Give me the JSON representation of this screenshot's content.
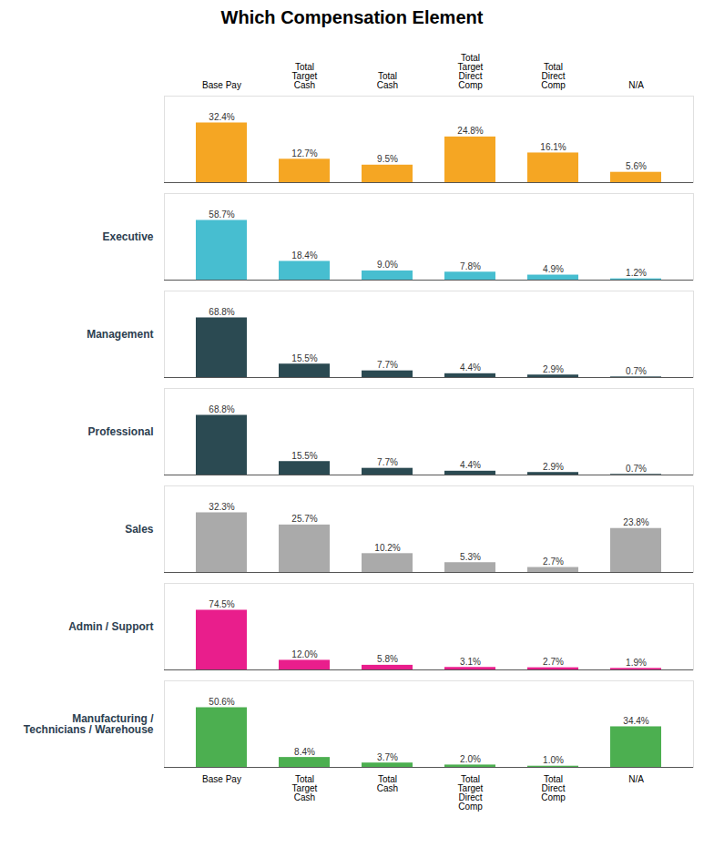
{
  "chart_data": [
    {
      "type": "bar",
      "title": "Which Compensation Element",
      "categories": [
        "Base Pay",
        "Total\nTarget\nCash",
        "Total\nCash",
        "Total\nTarget\nDirect\nComp",
        "Total\nDirect\nComp",
        "N/A"
      ],
      "values": [
        32.4,
        12.7,
        9.5,
        24.8,
        16.1,
        5.6
      ],
      "value_labels": [
        "32.4%",
        "12.7%",
        "9.5%",
        "24.8%",
        "16.1%",
        "5.6%"
      ],
      "color": "#F5A623",
      "ylim": [
        0,
        46.98
      ],
      "data_labels": true,
      "grid": false,
      "tick_labels": "x"
    },
    {
      "type": "bar",
      "title": "Executive",
      "categories": [
        "Base Pay",
        "Total\nTarget\nCash",
        "Total\nCash",
        "Total\nTarget\nDirect\nComp",
        "Total\nDirect\nComp",
        "N/A"
      ],
      "values": [
        58.7,
        18.4,
        9.0,
        7.8,
        4.9,
        1.2
      ],
      "value_labels": [
        "58.7%",
        "18.4%",
        "9.0%",
        "7.8%",
        "4.9%",
        "1.2%"
      ],
      "color": "#47BED0",
      "ylim": [
        0,
        85.115
      ],
      "data_labels": true,
      "grid": false,
      "tick_labels": false
    },
    {
      "type": "bar",
      "title": "Management",
      "categories": [
        "Base Pay",
        "Total\nTarget\nCash",
        "Total\nCash",
        "Total\nTarget\nDirect\nComp",
        "Total\nDirect\nComp",
        "N/A"
      ],
      "values": [
        68.8,
        15.5,
        7.7,
        4.4,
        2.9,
        0.7
      ],
      "value_labels": [
        "68.8%",
        "15.5%",
        "7.7%",
        "4.4%",
        "2.9%",
        "0.7%"
      ],
      "color": "#2B4A52",
      "ylim": [
        0,
        99.76
      ],
      "data_labels": true,
      "grid": false,
      "tick_labels": false
    },
    {
      "type": "bar",
      "title": "Professional",
      "categories": [
        "Base Pay",
        "Total\nTarget\nCash",
        "Total\nCash",
        "Total\nTarget\nDirect\nComp",
        "Total\nDirect\nComp",
        "N/A"
      ],
      "values": [
        68.8,
        15.5,
        7.7,
        4.4,
        2.9,
        0.7
      ],
      "value_labels": [
        "68.8%",
        "15.5%",
        "7.7%",
        "4.4%",
        "2.9%",
        "0.7%"
      ],
      "color": "#2B4A52",
      "ylim": [
        0,
        99.76
      ],
      "data_labels": true,
      "grid": false,
      "tick_labels": false
    },
    {
      "type": "bar",
      "title": "Sales",
      "categories": [
        "Base Pay",
        "Total\nTarget\nCash",
        "Total\nCash",
        "Total\nTarget\nDirect\nComp",
        "Total\nDirect\nComp",
        "N/A"
      ],
      "values": [
        32.3,
        25.7,
        10.2,
        5.3,
        2.7,
        23.8
      ],
      "value_labels": [
        "32.3%",
        "25.7%",
        "10.2%",
        "5.3%",
        "2.7%",
        "23.8%"
      ],
      "color": "#AAAAAA",
      "ylim": [
        0,
        46.835
      ],
      "data_labels": true,
      "grid": false,
      "tick_labels": false
    },
    {
      "type": "bar",
      "title": "Admin / Support",
      "categories": [
        "Base Pay",
        "Total\nTarget\nCash",
        "Total\nCash",
        "Total\nTarget\nDirect\nComp",
        "Total\nDirect\nComp",
        "N/A"
      ],
      "values": [
        74.5,
        12.0,
        5.8,
        3.1,
        2.7,
        1.9
      ],
      "value_labels": [
        "74.5%",
        "12.0%",
        "5.8%",
        "3.1%",
        "2.7%",
        "1.9%"
      ],
      "color": "#E91E8C",
      "ylim": [
        0,
        108.025
      ],
      "data_labels": true,
      "grid": false,
      "tick_labels": false
    },
    {
      "type": "bar",
      "title": "Manufacturing /\nTechnicians / Warehouse",
      "categories": [
        "Base Pay",
        "Total\nTarget\nCash",
        "Total\nCash",
        "Total\nTarget\nDirect\nComp",
        "Total\nDirect\nComp",
        "N/A"
      ],
      "values": [
        50.6,
        8.4,
        3.7,
        2.0,
        1.0,
        34.4
      ],
      "value_labels": [
        "50.6%",
        "8.4%",
        "3.7%",
        "2.0%",
        "1.0%",
        "34.4%"
      ],
      "color": "#4CAF50",
      "ylim": [
        0,
        73.37
      ],
      "data_labels": true,
      "grid": false,
      "tick_labels": "x"
    }
  ]
}
